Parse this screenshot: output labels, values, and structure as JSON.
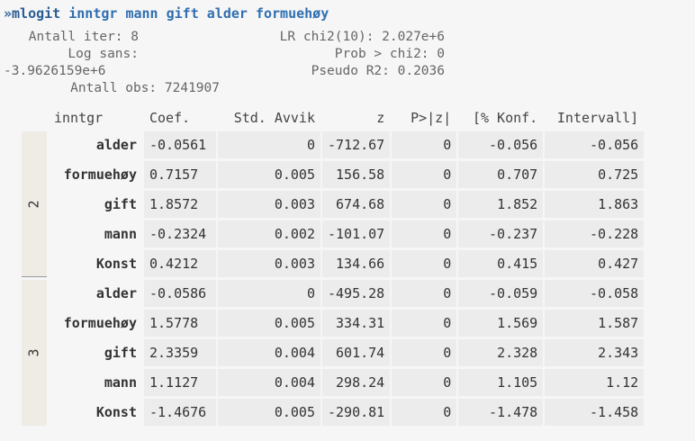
{
  "command": {
    "prefix": "»mlogit",
    "args": "inntgr mann gift alder formuehøy"
  },
  "stats": {
    "left": [
      "Antall iter: 8",
      "Log sans:",
      "-3.9626159e+6",
      "Antall obs: 7241907"
    ],
    "right": [
      "LR chi2(10): 2.027e+6",
      "Prob > chi2: 0",
      "Pseudo R2: 0.2036"
    ]
  },
  "table": {
    "header": [
      "inntgr",
      "Coef.",
      "Std. Avvik",
      "z",
      "P>|z|",
      "[% Konf.",
      "Intervall]"
    ],
    "groups": [
      {
        "label": "2",
        "rows": [
          [
            "alder",
            "-0.0561",
            "0",
            "-712.67",
            "0",
            "-0.056",
            "-0.056"
          ],
          [
            "formuehøy",
            "0.7157",
            "0.005",
            "156.58",
            "0",
            "0.707",
            "0.725"
          ],
          [
            "gift",
            "1.8572",
            "0.003",
            "674.68",
            "0",
            "1.852",
            "1.863"
          ],
          [
            "mann",
            "-0.2324",
            "0.002",
            "-101.07",
            "0",
            "-0.237",
            "-0.228"
          ],
          [
            "Konst",
            "0.4212",
            "0.003",
            "134.66",
            "0",
            "0.415",
            "0.427"
          ]
        ]
      },
      {
        "label": "3",
        "rows": [
          [
            "alder",
            "-0.0586",
            "0",
            "-495.28",
            "0",
            "-0.059",
            "-0.058"
          ],
          [
            "formuehøy",
            "1.5778",
            "0.005",
            "334.31",
            "0",
            "1.569",
            "1.587"
          ],
          [
            "gift",
            "2.3359",
            "0.004",
            "601.74",
            "0",
            "2.328",
            "2.343"
          ],
          [
            "mann",
            "1.1127",
            "0.004",
            "298.24",
            "0",
            "1.105",
            "1.12"
          ],
          [
            "Konst",
            "-1.4676",
            "0.005",
            "-290.81",
            "0",
            "-1.478",
            "-1.458"
          ]
        ]
      }
    ]
  }
}
